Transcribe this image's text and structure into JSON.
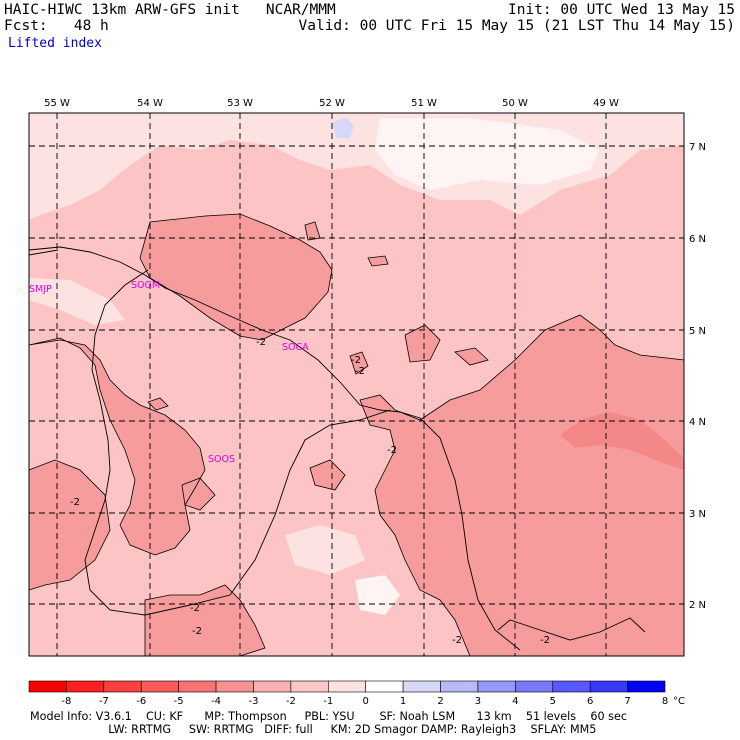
{
  "header": {
    "model_line": "HAIC-HIWC 13km ARW-GFS init   NCAR/MMM",
    "init_line": "Init: 00 UTC Wed 13 May 15",
    "fcst_line": "Fcst:   48 h",
    "valid_line": "Valid: 00 UTC Fri 15 May 15 (21 LST Thu 14 May 15)",
    "field_name": "Lifted index"
  },
  "map": {
    "lon_labels": [
      "55 W",
      "54 W",
      "53 W",
      "52 W",
      "51 W",
      "50 W",
      "49 W"
    ],
    "lat_labels": [
      "7 N",
      "6 N",
      "5 N",
      "4 N",
      "3 N",
      "2 N"
    ],
    "stations": [
      "SMJP",
      "SOGM",
      "SOCA",
      "SOOS"
    ],
    "contour_labels": [
      "-2",
      "-2",
      "-2",
      "-2",
      "-2",
      "-2",
      "-2",
      "-2",
      "-2"
    ],
    "colors": {
      "base": "#fcc4c4",
      "light": "#fde2e2",
      "mid": "#f79c9c",
      "deep": "#f48888",
      "white": "#fff4f4",
      "blue": "#d6d8f8",
      "grid": "#000000",
      "station": "#e000e0"
    }
  },
  "colorbar": {
    "labels": [
      "-8",
      "-7",
      "-6",
      "-5",
      "-4",
      "-3",
      "-2",
      "-1",
      "0",
      "1",
      "2",
      "3",
      "4",
      "5",
      "6",
      "7",
      "8"
    ],
    "unit": "°C",
    "colors": [
      "#ff0000",
      "#fc2020",
      "#fb4040",
      "#fa5a5a",
      "#f87474",
      "#f79292",
      "#f8b0b0",
      "#fbc8c8",
      "#fde2e2",
      "#ffffff",
      "#d8d8fb",
      "#b8b8fb",
      "#9898fb",
      "#7878fb",
      "#5858fb",
      "#3838fb",
      "#0000ff"
    ]
  },
  "footer": {
    "line1": "Model Info: V3.6.1    CU: KF      MP: Thompson     PBL: YSU       SF: Noah LSM      13 km    51 levels    60 sec",
    "line2": "                      LW: RRTMG     SW: RRTMG   DIFF: full     KM: 2D Smagor DAMP: Rayleigh3    SFLAY: MM5"
  }
}
